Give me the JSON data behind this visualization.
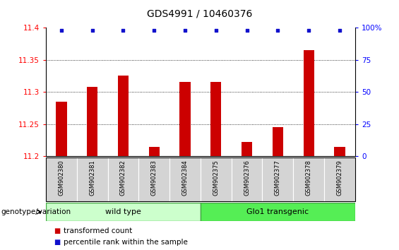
{
  "title": "GDS4991 / 10460376",
  "samples": [
    "GSM902380",
    "GSM902381",
    "GSM902382",
    "GSM902383",
    "GSM902384",
    "GSM902375",
    "GSM902376",
    "GSM902377",
    "GSM902378",
    "GSM902379"
  ],
  "red_values": [
    11.285,
    11.308,
    11.325,
    11.215,
    11.315,
    11.315,
    11.222,
    11.245,
    11.365,
    11.215
  ],
  "blue_values": [
    98,
    98,
    98,
    98,
    98,
    98,
    98,
    98,
    98,
    98
  ],
  "ylim_left": [
    11.2,
    11.4
  ],
  "ylim_right": [
    0,
    100
  ],
  "yticks_left": [
    11.2,
    11.25,
    11.3,
    11.35,
    11.4
  ],
  "yticks_right": [
    0,
    25,
    50,
    75,
    100
  ],
  "hlines": [
    11.25,
    11.3,
    11.35
  ],
  "n_wild_type": 5,
  "wild_type_label": "wild type",
  "glo1_label": "Glo1 transgenic",
  "genotype_label": "genotype/variation",
  "legend_red": "transformed count",
  "legend_blue": "percentile rank within the sample",
  "bar_color": "#cc0000",
  "dot_color": "#1111cc",
  "wild_type_color": "#ccffcc",
  "glo1_color": "#55ee55",
  "box_color": "#d4d4d4",
  "bar_width": 0.35,
  "figsize": [
    5.65,
    3.54
  ],
  "dpi": 100
}
